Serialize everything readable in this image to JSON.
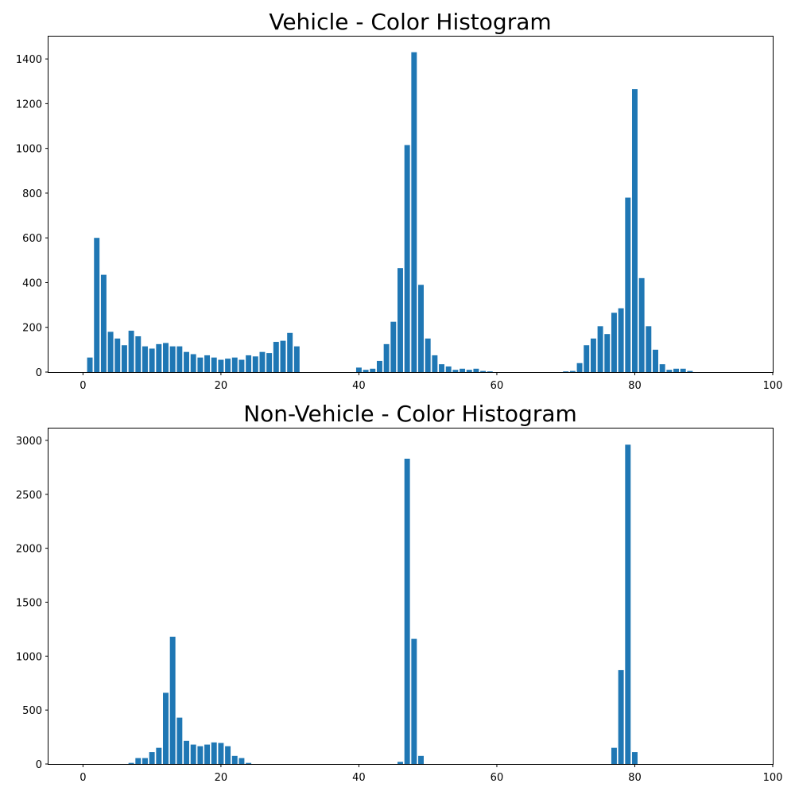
{
  "chart_data": [
    {
      "type": "bar",
      "title": "Vehicle - Color Histogram",
      "xlabel": "",
      "ylabel": "",
      "xlim": [
        -5,
        100
      ],
      "ylim": [
        0,
        1500
      ],
      "x_ticks": [
        0,
        20,
        40,
        60,
        80,
        100
      ],
      "y_ticks": [
        0,
        200,
        400,
        600,
        800,
        1000,
        1200,
        1400
      ],
      "grid": false,
      "bar_color": "#1f77b4",
      "x": [
        1,
        2,
        3,
        4,
        5,
        6,
        7,
        8,
        9,
        10,
        11,
        12,
        13,
        14,
        15,
        16,
        17,
        18,
        19,
        20,
        21,
        22,
        23,
        24,
        25,
        26,
        27,
        28,
        29,
        30,
        31,
        40,
        41,
        42,
        43,
        44,
        45,
        46,
        47,
        48,
        49,
        50,
        51,
        52,
        53,
        54,
        55,
        56,
        57,
        58,
        59,
        70,
        71,
        72,
        73,
        74,
        75,
        76,
        77,
        78,
        79,
        80,
        81,
        82,
        83,
        84,
        85,
        86,
        87,
        88
      ],
      "values": [
        65,
        600,
        435,
        180,
        150,
        120,
        185,
        160,
        115,
        105,
        125,
        130,
        115,
        115,
        90,
        80,
        65,
        75,
        65,
        55,
        60,
        65,
        55,
        75,
        70,
        90,
        85,
        135,
        140,
        175,
        115,
        20,
        10,
        15,
        50,
        125,
        225,
        465,
        1015,
        1430,
        390,
        150,
        75,
        35,
        25,
        10,
        15,
        10,
        15,
        5,
        3,
        3,
        5,
        40,
        120,
        150,
        205,
        170,
        265,
        285,
        780,
        1265,
        420,
        205,
        100,
        35,
        10,
        15,
        15,
        5
      ]
    },
    {
      "type": "bar",
      "title": "Non-Vehicle - Color Histogram",
      "xlabel": "",
      "ylabel": "",
      "xlim": [
        -5,
        100
      ],
      "ylim": [
        0,
        3110
      ],
      "x_ticks": [
        0,
        20,
        40,
        60,
        80,
        100
      ],
      "y_ticks": [
        0,
        500,
        1000,
        1500,
        2000,
        2500,
        3000
      ],
      "grid": false,
      "bar_color": "#1f77b4",
      "x": [
        7,
        8,
        9,
        10,
        11,
        12,
        13,
        14,
        15,
        16,
        17,
        18,
        19,
        20,
        21,
        22,
        23,
        24,
        46,
        47,
        48,
        49,
        77,
        78,
        79,
        80
      ],
      "values": [
        10,
        55,
        55,
        110,
        150,
        660,
        1180,
        430,
        215,
        180,
        165,
        180,
        200,
        195,
        165,
        75,
        55,
        10,
        20,
        2830,
        1160,
        75,
        150,
        870,
        2960,
        110
      ]
    }
  ]
}
